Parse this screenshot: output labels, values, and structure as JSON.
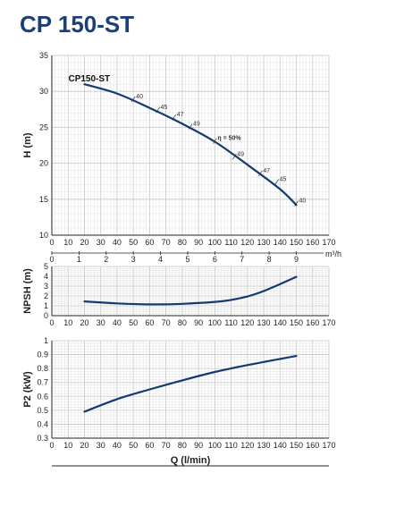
{
  "title": "CP 150-ST",
  "colors": {
    "title": "#1b3f7a",
    "curve": "#143a70",
    "grid": "#c8c8c8",
    "axis": "#222222"
  },
  "chart_data": [
    {
      "type": "line",
      "ylabel": "H (m)",
      "xlabel": "",
      "ylim": [
        10,
        35
      ],
      "yticks": [
        "10",
        "15",
        "20",
        "25",
        "30",
        "35"
      ],
      "xlim": [
        0,
        170
      ],
      "xticks": [
        "0",
        "10",
        "20",
        "30",
        "40",
        "50",
        "60",
        "70",
        "80",
        "90",
        "100",
        "110",
        "120",
        "130",
        "140",
        "150",
        "160",
        "170"
      ],
      "secondary_x": {
        "unit": "m³/h",
        "ticks": [
          "0",
          "1",
          "2",
          "3",
          "4",
          "5",
          "6",
          "7",
          "8",
          "9"
        ]
      },
      "grid": true,
      "series": [
        {
          "name": "CP150-ST",
          "x": [
            20,
            40,
            60,
            80,
            100,
            120,
            140,
            150
          ],
          "y": [
            31.0,
            29.7,
            27.7,
            25.5,
            23.0,
            19.8,
            16.4,
            14.2
          ]
        }
      ],
      "annotations": [
        {
          "text": "40",
          "x": 50,
          "y": 28.9
        },
        {
          "text": "45",
          "x": 65,
          "y": 27.4
        },
        {
          "text": "47",
          "x": 75,
          "y": 26.4
        },
        {
          "text": "49",
          "x": 85,
          "y": 25.1
        },
        {
          "text": "η = 50%",
          "x": 100,
          "y": 23.1
        },
        {
          "text": "49",
          "x": 112,
          "y": 20.9
        },
        {
          "text": "47",
          "x": 128,
          "y": 18.6
        },
        {
          "text": "45",
          "x": 138,
          "y": 17.4
        },
        {
          "text": "40",
          "x": 150,
          "y": 14.4
        }
      ]
    },
    {
      "type": "line",
      "ylabel": "NPSH (m)",
      "xlabel": "",
      "ylim": [
        0,
        5
      ],
      "yticks": [
        "0",
        "1",
        "2",
        "3",
        "4",
        "5"
      ],
      "xlim": [
        0,
        170
      ],
      "xticks": [
        "0",
        "10",
        "20",
        "30",
        "40",
        "50",
        "60",
        "70",
        "80",
        "90",
        "100",
        "110",
        "120",
        "130",
        "140",
        "150",
        "160",
        "170"
      ],
      "grid": true,
      "series": [
        {
          "x": [
            20,
            40,
            60,
            80,
            100,
            110,
            120,
            130,
            140,
            150
          ],
          "y": [
            1.45,
            1.25,
            1.15,
            1.2,
            1.4,
            1.6,
            1.95,
            2.5,
            3.2,
            3.95
          ]
        }
      ]
    },
    {
      "type": "line",
      "ylabel": "P2 (kW)",
      "xlabel": "Q (l/min)",
      "ylim": [
        0.3,
        1
      ],
      "yticks": [
        "0.3",
        "0.4",
        "0.5",
        "0.6",
        "0.7",
        "0.8",
        "0.9",
        "1"
      ],
      "xlim": [
        0,
        170
      ],
      "xticks": [
        "0",
        "10",
        "20",
        "30",
        "40",
        "50",
        "60",
        "70",
        "80",
        "90",
        "100",
        "110",
        "120",
        "130",
        "140",
        "150",
        "160",
        "170"
      ],
      "grid": true,
      "series": [
        {
          "x": [
            20,
            40,
            60,
            80,
            100,
            120,
            150
          ],
          "y": [
            0.49,
            0.58,
            0.65,
            0.715,
            0.775,
            0.825,
            0.89
          ]
        }
      ]
    }
  ]
}
